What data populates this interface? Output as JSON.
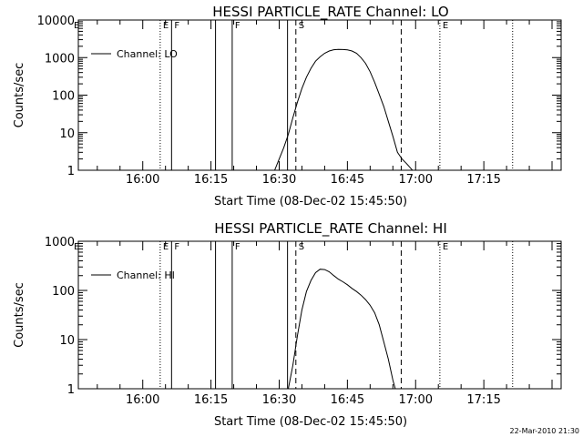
{
  "chart_data": [
    {
      "type": "line",
      "title": "HESSI PARTICLE_RATE Channel: LO",
      "xlabel": "Start Time (08-Dec-02 15:45:50)",
      "ylabel": "Counts/sec",
      "yscale": "log",
      "ylim": [
        1,
        10000
      ],
      "xlim_minutes": [
        "15:45:50",
        "17:32:00"
      ],
      "yticks": [
        {
          "label": "1",
          "value": 1
        },
        {
          "label": "10",
          "value": 10
        },
        {
          "label": "100",
          "value": 100
        },
        {
          "label": "1000",
          "value": 1000
        },
        {
          "label": "10000",
          "value": 10000
        }
      ],
      "xticks": [
        "16:00",
        "16:15",
        "16:30",
        "16:45",
        "17:00",
        "17:15"
      ],
      "legend": {
        "label": "Channel: LO",
        "position": "top-left"
      },
      "markers": [
        {
          "time": "16:03:50",
          "style": "dotted",
          "label": "E"
        },
        {
          "time": "16:06:20",
          "style": "solid",
          "label": "F"
        },
        {
          "time": "16:16:00",
          "style": "solid",
          "label": ""
        },
        {
          "time": "16:19:40",
          "style": "solid",
          "label": "F"
        },
        {
          "time": "16:31:50",
          "style": "solid",
          "label": ""
        },
        {
          "time": "16:33:40",
          "style": "dashed",
          "label": "S"
        },
        {
          "time": "16:56:50",
          "style": "dashed",
          "label": ""
        },
        {
          "time": "17:05:20",
          "style": "dotted",
          "label": "E"
        },
        {
          "time": "17:21:20",
          "style": "dotted",
          "label": ""
        }
      ],
      "series": [
        {
          "name": "Channel: LO",
          "x": [
            "16:29:00",
            "16:30:00",
            "16:31:00",
            "16:32:00",
            "16:33:00",
            "16:34:00",
            "16:35:00",
            "16:36:00",
            "16:37:00",
            "16:38:00",
            "16:39:00",
            "16:40:00",
            "16:41:00",
            "16:42:00",
            "16:43:00",
            "16:44:00",
            "16:45:00",
            "16:46:00",
            "16:47:00",
            "16:48:00",
            "16:49:00",
            "16:50:00",
            "16:51:00",
            "16:52:00",
            "16:53:00",
            "16:54:00",
            "16:55:00",
            "16:56:00",
            "16:57:00",
            "16:58:00",
            "16:59:00",
            "16:59:40"
          ],
          "y": [
            1,
            2,
            4,
            9,
            25,
            65,
            150,
            300,
            520,
            800,
            1050,
            1300,
            1500,
            1620,
            1650,
            1640,
            1600,
            1500,
            1300,
            1000,
            700,
            420,
            220,
            105,
            50,
            20,
            8,
            3,
            2,
            1.5,
            1.1,
            0.9
          ]
        }
      ]
    },
    {
      "type": "line",
      "title": "HESSI PARTICLE_RATE Channel: HI",
      "xlabel": "Start Time (08-Dec-02 15:45:50)",
      "ylabel": "Counts/sec",
      "yscale": "log",
      "ylim": [
        1,
        1000
      ],
      "xlim_minutes": [
        "15:45:50",
        "17:32:00"
      ],
      "yticks": [
        {
          "label": "1",
          "value": 1
        },
        {
          "label": "10",
          "value": 10
        },
        {
          "label": "100",
          "value": 100
        },
        {
          "label": "1000",
          "value": 1000
        }
      ],
      "xticks": [
        "16:00",
        "16:15",
        "16:30",
        "16:45",
        "17:00",
        "17:15"
      ],
      "legend": {
        "label": "Channel: HI",
        "position": "top-left"
      },
      "markers": [
        {
          "time": "16:03:50",
          "style": "dotted",
          "label": "E"
        },
        {
          "time": "16:06:20",
          "style": "solid",
          "label": "F"
        },
        {
          "time": "16:16:00",
          "style": "solid",
          "label": ""
        },
        {
          "time": "16:19:40",
          "style": "solid",
          "label": "F"
        },
        {
          "time": "16:31:50",
          "style": "solid",
          "label": ""
        },
        {
          "time": "16:33:40",
          "style": "dashed",
          "label": "S"
        },
        {
          "time": "16:56:50",
          "style": "dashed",
          "label": ""
        },
        {
          "time": "17:05:20",
          "style": "dotted",
          "label": "E"
        },
        {
          "time": "17:21:20",
          "style": "dotted",
          "label": ""
        }
      ],
      "series": [
        {
          "name": "Channel: HI",
          "x": [
            "16:32:00",
            "16:33:00",
            "16:34:00",
            "16:35:00",
            "16:36:00",
            "16:37:00",
            "16:38:00",
            "16:39:00",
            "16:40:00",
            "16:41:00",
            "16:42:00",
            "16:43:00",
            "16:44:00",
            "16:45:00",
            "16:46:00",
            "16:47:00",
            "16:48:00",
            "16:49:00",
            "16:50:00",
            "16:51:00",
            "16:52:00",
            "16:53:00",
            "16:54:00",
            "16:55:00",
            "16:55:40"
          ],
          "y": [
            1,
            3,
            12,
            40,
            95,
            160,
            230,
            270,
            265,
            240,
            200,
            170,
            150,
            130,
            110,
            95,
            80,
            65,
            50,
            35,
            20,
            9,
            4,
            1.5,
            0.9
          ]
        }
      ]
    }
  ],
  "footer": {
    "timestamp": "22-Mar-2010 21:30"
  }
}
